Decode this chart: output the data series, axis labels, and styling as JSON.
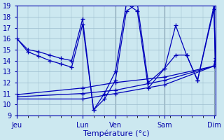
{
  "xlabel": "Température (°c)",
  "background_color": "#cce8f0",
  "line_color": "#0000bb",
  "grid_color": "#99bbcc",
  "ylim": [
    9,
    19
  ],
  "ytick_labels": [
    "9",
    "10",
    "11",
    "12",
    "13",
    "14",
    "15",
    "16",
    "17",
    "18",
    "19"
  ],
  "ytick_values": [
    9,
    10,
    11,
    12,
    13,
    14,
    15,
    16,
    17,
    18,
    19
  ],
  "day_labels": [
    "Jeu",
    "Lun",
    "Ven",
    "Sam",
    "Dim"
  ],
  "day_x": [
    0,
    96,
    144,
    216,
    288
  ],
  "total_width": 290,
  "lines": [
    {
      "xpx": [
        0,
        16,
        32,
        48,
        64,
        80,
        96,
        112,
        128,
        144,
        160,
        176,
        192,
        216,
        232,
        248,
        264,
        288,
        290
      ],
      "y": [
        16,
        15,
        14.8,
        14.5,
        14.2,
        14.0,
        17.8,
        9.5,
        11.0,
        13.0,
        19.2,
        18.5,
        11.5,
        13.3,
        17.2,
        14.5,
        12.2,
        19.0,
        14.0
      ]
    },
    {
      "xpx": [
        0,
        16,
        32,
        48,
        64,
        80,
        96,
        112,
        128,
        144,
        160,
        176,
        192,
        216,
        232,
        248,
        264,
        288,
        290
      ],
      "y": [
        16,
        14.8,
        14.4,
        14.0,
        13.7,
        13.4,
        17.3,
        9.5,
        10.5,
        12.2,
        18.5,
        19.2,
        12.0,
        13.3,
        14.5,
        14.5,
        12.2,
        18.7,
        14.0
      ]
    },
    {
      "xpx": [
        0,
        96,
        144,
        216,
        288,
        290
      ],
      "y": [
        10.5,
        10.5,
        11.0,
        11.8,
        13.5,
        13.7
      ]
    },
    {
      "xpx": [
        0,
        96,
        144,
        216,
        288,
        290
      ],
      "y": [
        10.7,
        11.0,
        11.3,
        12.2,
        13.5,
        14.0
      ]
    },
    {
      "xpx": [
        0,
        96,
        144,
        216,
        288,
        290
      ],
      "y": [
        10.9,
        11.5,
        12.0,
        12.5,
        13.5,
        14.2
      ]
    }
  ],
  "vline_x": [
    96,
    144,
    216,
    288
  ],
  "vline_color": "#556677",
  "xlabel_fontsize": 8,
  "tick_fontsize": 7,
  "tick_color": "#0000aa",
  "spine_color": "#0000aa"
}
